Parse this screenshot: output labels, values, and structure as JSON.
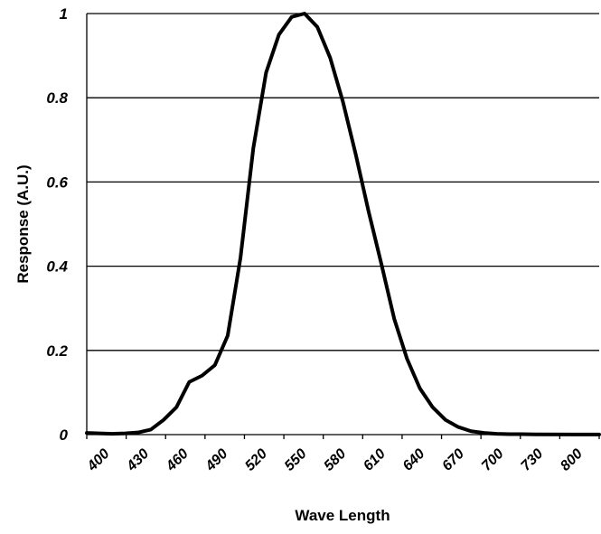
{
  "chart_data": {
    "type": "line",
    "title": "",
    "xlabel": "Wave Length",
    "ylabel": "Response (A.U.)",
    "x_tick_labels": [
      "400",
      "430",
      "460",
      "490",
      "520",
      "550",
      "580",
      "610",
      "640",
      "670",
      "700",
      "730",
      "800"
    ],
    "y_tick_labels": [
      "0",
      "0.2",
      "0.4",
      "0.6",
      "0.8",
      "1"
    ],
    "y_ticks": [
      0,
      0.2,
      0.4,
      0.6,
      0.8,
      1
    ],
    "ylim": [
      0,
      1
    ],
    "grid": "horizontal",
    "legend": "none",
    "series": [
      {
        "x": [
          "400",
          "410",
          "420",
          "430",
          "440",
          "450",
          "460",
          "470",
          "480",
          "490",
          "500",
          "510",
          "520",
          "530",
          "540",
          "550",
          "560",
          "570",
          "580",
          "590",
          "600",
          "610",
          "620",
          "630",
          "640",
          "650",
          "660",
          "670",
          "680",
          "690",
          "700",
          "710",
          "720",
          "730",
          "740",
          "750",
          "800"
        ],
        "values": [
          0.004,
          0.003,
          0.002,
          0.003,
          0.005,
          0.012,
          0.035,
          0.065,
          0.125,
          0.14,
          0.165,
          0.235,
          0.42,
          0.68,
          0.86,
          0.95,
          0.992,
          1.0,
          0.968,
          0.895,
          0.79,
          0.665,
          0.53,
          0.405,
          0.275,
          0.18,
          0.11,
          0.065,
          0.035,
          0.018,
          0.008,
          0.004,
          0.002,
          0.001,
          0.001,
          0.0005,
          0.0002
        ]
      }
    ],
    "colors": {
      "line": "#000000",
      "grid": "#000000",
      "background": "#ffffff"
    }
  }
}
